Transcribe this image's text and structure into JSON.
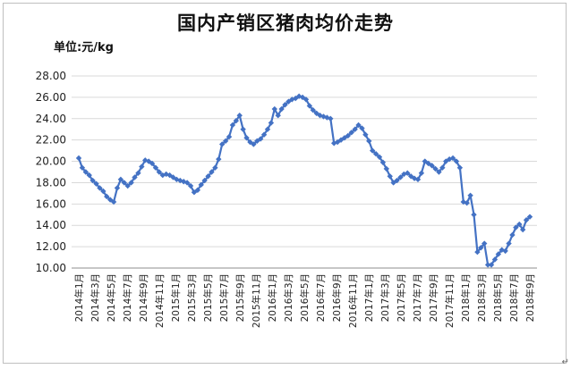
{
  "chart_data": {
    "type": "line",
    "title": "国内产销区猪肉均价走势",
    "unit_label": "单位:元/kg",
    "ylim": [
      10,
      28
    ],
    "y_ticks": [
      "10.00",
      "12.00",
      "14.00",
      "16.00",
      "18.00",
      "20.00",
      "22.00",
      "24.00",
      "26.00",
      "28.00"
    ],
    "grid": "horizontal",
    "color": "#4472C4",
    "x_tick_labels": [
      "2014年1月",
      "2014年3月",
      "2014年5月",
      "2014年7月",
      "2014年9月",
      "2014年11月",
      "2015年1月",
      "2015年3月",
      "2015年5月",
      "2015年7月",
      "2015年9月",
      "2015年11月",
      "2016年1月",
      "2016年3月",
      "2016年5月",
      "2016年7月",
      "2016年9月",
      "2016年11月",
      "2017年1月",
      "2017年3月",
      "2017年5月",
      "2017年7月",
      "2017年9月",
      "2017年11月",
      "2018年1月",
      "2018年3月",
      "2018年5月",
      "2018年7月",
      "2018年9月"
    ],
    "series": [
      {
        "values": [
          20.3,
          19.4,
          19.0,
          18.7,
          18.2,
          17.9,
          17.5,
          17.2,
          16.7,
          16.4,
          16.2,
          17.5,
          18.3,
          18.0,
          17.7,
          18.0,
          18.5,
          18.9,
          19.5,
          20.1,
          20.0,
          19.8,
          19.4,
          19.0,
          18.7,
          18.8,
          18.7,
          18.5,
          18.3,
          18.2,
          18.1,
          18.0,
          17.7,
          17.1,
          17.3,
          17.8,
          18.2,
          18.6,
          19.0,
          19.4,
          20.2,
          21.6,
          21.9,
          22.3,
          23.4,
          23.8,
          24.3,
          23.0,
          22.2,
          21.8,
          21.6,
          21.9,
          22.1,
          22.5,
          23.0,
          23.6,
          24.9,
          24.3,
          24.9,
          25.3,
          25.6,
          25.8,
          25.9,
          26.1,
          26.0,
          25.8,
          25.2,
          24.8,
          24.5,
          24.3,
          24.2,
          24.1,
          24.0,
          21.7,
          21.8,
          22.0,
          22.2,
          22.4,
          22.7,
          23.0,
          23.4,
          23.1,
          22.5,
          21.9,
          21.0,
          20.7,
          20.4,
          19.9,
          19.3,
          18.6,
          18.0,
          18.2,
          18.5,
          18.8,
          18.9,
          18.6,
          18.4,
          18.3,
          18.9,
          20.0,
          19.8,
          19.6,
          19.3,
          19.0,
          19.4,
          20.0,
          20.2,
          20.3,
          20.0,
          19.4,
          16.2,
          16.1,
          16.8,
          15.0,
          11.5,
          11.9,
          12.3,
          10.3,
          10.3,
          10.8,
          11.3,
          11.7,
          11.6,
          12.3,
          13.1,
          13.8,
          14.1,
          13.6,
          14.5,
          14.8
        ]
      }
    ]
  }
}
